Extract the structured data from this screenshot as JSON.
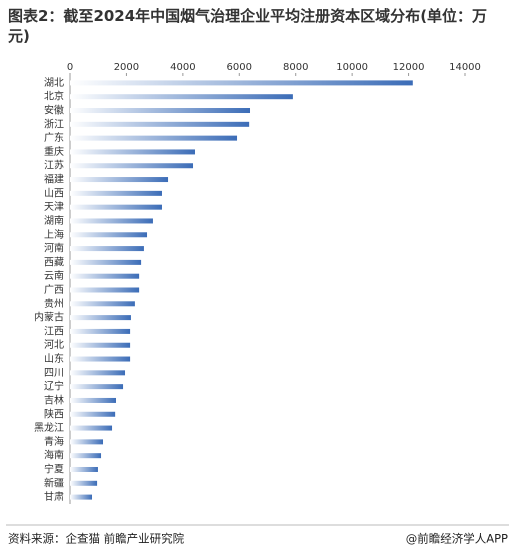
{
  "chart_data": {
    "type": "bar",
    "orientation": "horizontal",
    "title": "图表2：截至2024年中国烟气治理企业平均注册资本区域分布(单位：万元)",
    "categories": [
      "湖北",
      "北京",
      "安徽",
      "浙江",
      "广东",
      "重庆",
      "江苏",
      "福建",
      "山西",
      "天津",
      "湖南",
      "上海",
      "河南",
      "西藏",
      "云南",
      "广西",
      "贵州",
      "内蒙古",
      "江西",
      "河北",
      "山东",
      "四川",
      "辽宁",
      "吉林",
      "陕西",
      "黑龙江",
      "青海",
      "海南",
      "宁夏",
      "新疆",
      "甘肃"
    ],
    "values": [
      12150,
      7900,
      6380,
      6350,
      5920,
      4430,
      4360,
      3475,
      3260,
      3260,
      2940,
      2730,
      2620,
      2520,
      2450,
      2450,
      2300,
      2160,
      2130,
      2130,
      2130,
      1950,
      1880,
      1630,
      1600,
      1490,
      1170,
      1100,
      990,
      960,
      780
    ],
    "color": "#3b6cb7",
    "xlim": [
      0,
      14000
    ],
    "xticks": [
      0,
      2000,
      4000,
      6000,
      8000,
      10000,
      12000,
      14000
    ],
    "grid": false,
    "source": "资料来源：企查猫 前瞻产业研究院",
    "credit": "@前瞻经济学人APP"
  }
}
